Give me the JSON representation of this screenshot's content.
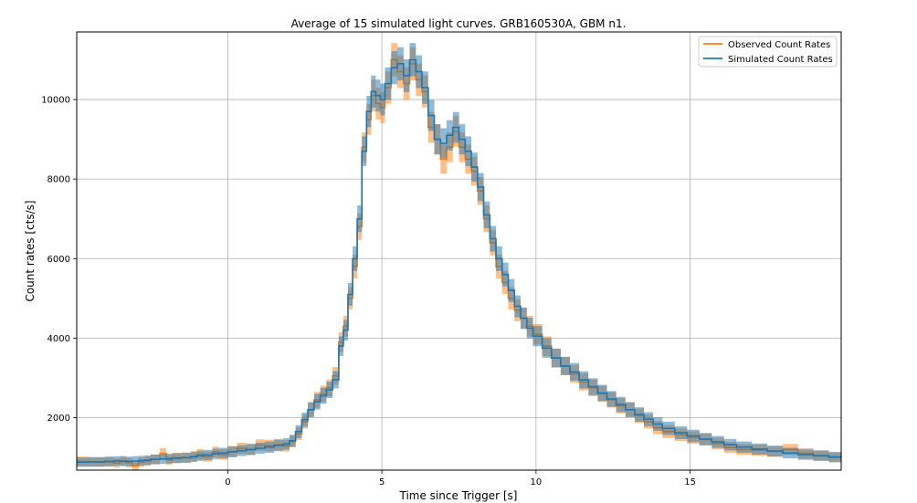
{
  "chart_data": {
    "type": "line",
    "title": "Average of 15 simulated light curves. GRB160530A, GBM n1.",
    "xlabel": "Time since Trigger [s]",
    "ylabel": "Count rates [cts/s]",
    "xlim": [
      -4.9,
      19.9
    ],
    "ylim": [
      680,
      11700
    ],
    "x_ticks": [
      0,
      5,
      10,
      15
    ],
    "y_ticks": [
      2000,
      4000,
      6000,
      8000,
      10000
    ],
    "grid": true,
    "legend_position": "top-right",
    "colors": {
      "observed": "#ff7f0e",
      "simulated": "#1f77b4"
    },
    "series": [
      {
        "name": "Observed Count Rates",
        "x": [
          -4.9,
          -4.5,
          -4.0,
          -3.7,
          -3.5,
          -3.3,
          -3.1,
          -2.9,
          -2.7,
          -2.5,
          -2.2,
          -2.0,
          -1.8,
          -1.5,
          -1.2,
          -1.0,
          -0.8,
          -0.5,
          -0.3,
          0.0,
          0.3,
          0.6,
          0.9,
          1.2,
          1.5,
          1.8,
          2.0,
          2.2,
          2.4,
          2.6,
          2.8,
          3.0,
          3.2,
          3.4,
          3.6,
          3.75,
          3.9,
          4.05,
          4.2,
          4.35,
          4.5,
          4.65,
          4.8,
          4.95,
          5.1,
          5.3,
          5.5,
          5.7,
          5.9,
          6.1,
          6.3,
          6.5,
          6.7,
          6.9,
          7.1,
          7.3,
          7.5,
          7.7,
          7.9,
          8.1,
          8.3,
          8.5,
          8.7,
          8.9,
          9.1,
          9.3,
          9.5,
          9.7,
          9.9,
          10.2,
          10.5,
          10.8,
          11.1,
          11.4,
          11.7,
          12.0,
          12.3,
          12.6,
          12.9,
          13.2,
          13.5,
          13.8,
          14.1,
          14.5,
          14.9,
          15.3,
          15.7,
          16.1,
          16.5,
          17.0,
          17.5,
          18.0,
          18.5,
          19.0,
          19.5,
          19.9
        ],
        "values": [
          900,
          880,
          890,
          860,
          920,
          870,
          780,
          880,
          910,
          950,
          1100,
          940,
          990,
          1000,
          1030,
          1080,
          1020,
          1140,
          1070,
          1150,
          1230,
          1200,
          1310,
          1300,
          1320,
          1290,
          1400,
          1600,
          1900,
          2200,
          2450,
          2600,
          2750,
          3050,
          3900,
          4300,
          5000,
          5800,
          6800,
          8800,
          9500,
          10100,
          9900,
          9800,
          10300,
          11000,
          10700,
          10400,
          10900,
          10500,
          10200,
          9300,
          9000,
          8500,
          8800,
          9200,
          8800,
          8500,
          8200,
          7700,
          7000,
          6400,
          5800,
          5400,
          5000,
          4700,
          4500,
          4300,
          4100,
          3800,
          3500,
          3300,
          3100,
          2900,
          2750,
          2600,
          2450,
          2300,
          2200,
          2050,
          1900,
          1750,
          1650,
          1570,
          1500,
          1450,
          1350,
          1250,
          1200,
          1180,
          1150,
          1200,
          1100,
          1050,
          1000,
          1000
        ]
      },
      {
        "name": "Simulated Count Rates",
        "x": [
          -4.9,
          -4.5,
          -4.0,
          -3.7,
          -3.5,
          -3.3,
          -3.1,
          -2.9,
          -2.7,
          -2.5,
          -2.2,
          -2.0,
          -1.8,
          -1.5,
          -1.2,
          -1.0,
          -0.8,
          -0.5,
          -0.3,
          0.0,
          0.3,
          0.6,
          0.9,
          1.2,
          1.5,
          1.8,
          2.0,
          2.2,
          2.4,
          2.6,
          2.8,
          3.0,
          3.2,
          3.4,
          3.6,
          3.75,
          3.9,
          4.05,
          4.2,
          4.35,
          4.5,
          4.65,
          4.8,
          4.95,
          5.1,
          5.3,
          5.5,
          5.7,
          5.9,
          6.1,
          6.3,
          6.5,
          6.7,
          6.9,
          7.1,
          7.3,
          7.5,
          7.7,
          7.9,
          8.1,
          8.3,
          8.5,
          8.7,
          8.9,
          9.1,
          9.3,
          9.5,
          9.7,
          9.9,
          10.2,
          10.5,
          10.8,
          11.1,
          11.4,
          11.7,
          12.0,
          12.3,
          12.6,
          12.9,
          13.2,
          13.5,
          13.8,
          14.1,
          14.5,
          14.9,
          15.3,
          15.7,
          16.1,
          16.5,
          17.0,
          17.5,
          18.0,
          18.5,
          19.0,
          19.5,
          19.9
        ],
        "values": [
          880,
          890,
          900,
          910,
          900,
          900,
          910,
          920,
          930,
          950,
          960,
          970,
          980,
          990,
          1010,
          1040,
          1060,
          1090,
          1110,
          1140,
          1170,
          1200,
          1230,
          1260,
          1300,
          1340,
          1420,
          1650,
          1950,
          2200,
          2400,
          2550,
          2700,
          2950,
          3800,
          4200,
          5100,
          6000,
          7000,
          8700,
          9700,
          10200,
          10100,
          10000,
          10400,
          10800,
          10900,
          10600,
          11000,
          10700,
          10300,
          9600,
          9000,
          8900,
          9100,
          9300,
          9000,
          8700,
          8300,
          7800,
          7100,
          6500,
          6000,
          5600,
          5200,
          4800,
          4500,
          4250,
          4050,
          3750,
          3500,
          3300,
          3150,
          2950,
          2780,
          2620,
          2470,
          2330,
          2200,
          2080,
          1960,
          1840,
          1730,
          1620,
          1540,
          1460,
          1390,
          1320,
          1260,
          1210,
          1160,
          1110,
          1070,
          1040,
          1010,
          1000
        ]
      }
    ]
  }
}
